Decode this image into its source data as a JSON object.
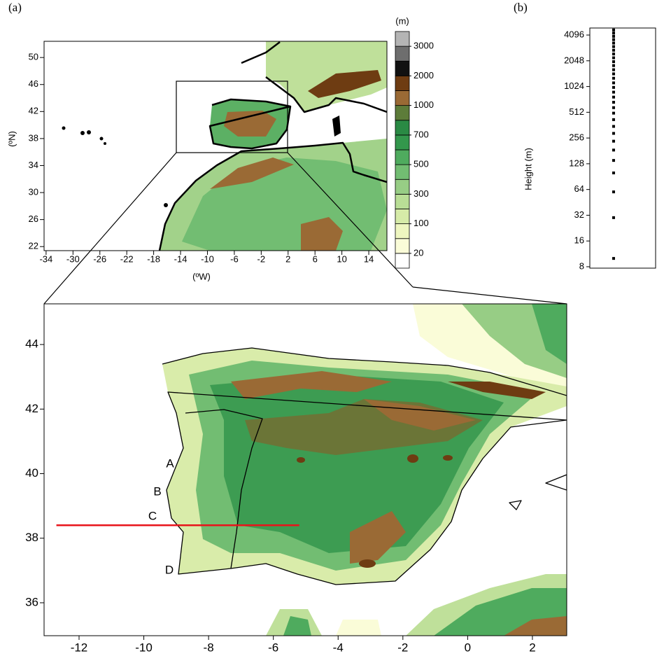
{
  "chart_data": [
    {
      "type": "map",
      "label": "(a)",
      "xlabel": "(ºW)",
      "ylabel": "(ºN)",
      "xlim": [
        -34.3,
        16.7
      ],
      "ylim": [
        21.4,
        52.4
      ],
      "xticks": [
        -34,
        -30,
        -26,
        -22,
        -18,
        -14,
        -10,
        -6,
        -2,
        2,
        6,
        10,
        14
      ],
      "yticks": [
        22,
        26,
        30,
        34,
        38,
        42,
        46,
        50
      ]
    },
    {
      "type": "colorbar",
      "title": "(m)",
      "colors": [
        "#ffffff",
        "#fafcd8",
        "#eef6c0",
        "#d6eba8",
        "#b9de96",
        "#97cd85",
        "#72bd72",
        "#4fab5e",
        "#33974c",
        "#2a8a44",
        "#5d7c3a",
        "#9a6a35",
        "#6e3c12",
        "#111111",
        "#6e6e6e",
        "#b4b4b4"
      ],
      "ticks": [
        20,
        100,
        300,
        500,
        700,
        1000,
        2000,
        3000
      ]
    },
    {
      "type": "map",
      "xlim": [
        -13.08,
        3.06
      ],
      "ylim": [
        34.98,
        45.26
      ],
      "xticks": [
        -12,
        -10,
        -8,
        -6,
        -4,
        -2,
        0,
        2
      ],
      "yticks": [
        36,
        38,
        40,
        42,
        44
      ],
      "annotations": [
        "A",
        "B",
        "C",
        "D"
      ],
      "transect": {
        "x": [
          -12.7,
          -5.2
        ],
        "y": [
          38.4,
          38.4
        ],
        "color": "#e8141b"
      }
    },
    {
      "type": "scatter",
      "label": "(b)",
      "ylabel": "Height (m)",
      "log_base": 2,
      "ylim": [
        7.7,
        4950
      ],
      "yticks": [
        8,
        16,
        32,
        64,
        128,
        256,
        512,
        1024,
        2048,
        4096
      ],
      "values": [
        10,
        30,
        60,
        100,
        140,
        185,
        235,
        290,
        350,
        420,
        500,
        580,
        670,
        770,
        880,
        1000,
        1130,
        1280,
        1440,
        1610,
        1800,
        2000,
        2220,
        2460,
        2720,
        3000,
        3300,
        3620,
        3960,
        4320,
        4700
      ]
    }
  ]
}
